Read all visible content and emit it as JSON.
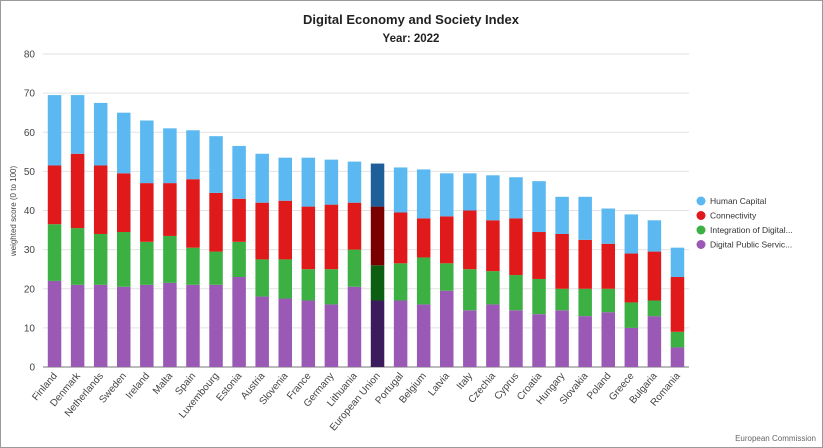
{
  "chart_data": {
    "type": "bar",
    "stacked": true,
    "title": "Digital Economy and Society Index",
    "subtitle": "Year: 2022",
    "xlabel": "",
    "ylabel": "weighted score (0 to 100)",
    "ylim": [
      0,
      80
    ],
    "yticks": [
      0,
      10,
      20,
      30,
      40,
      50,
      60,
      70,
      80
    ],
    "grid": true,
    "legend_position": "right",
    "categories": [
      "Finland",
      "Denmark",
      "Netherlands",
      "Sweden",
      "Ireland",
      "Malta",
      "Spain",
      "Luxembourg",
      "Estonia",
      "Austria",
      "Slovenia",
      "France",
      "Germany",
      "Lithuania",
      "European Union",
      "Portugal",
      "Belgium",
      "Latvia",
      "Italy",
      "Czechia",
      "Cyprus",
      "Croatia",
      "Hungary",
      "Slovakia",
      "Poland",
      "Greece",
      "Bulgaria",
      "Romania"
    ],
    "highlight_category": "European Union",
    "series": [
      {
        "name": "Digital Public Servic...",
        "color": "#9b59b6",
        "highlight_color": "#3b1a5e",
        "values": [
          22,
          21,
          21,
          20.5,
          21,
          21.5,
          21,
          21,
          23,
          18,
          17.5,
          17,
          16,
          20.5,
          17,
          17,
          16,
          19.5,
          14.5,
          16,
          14.5,
          13.5,
          14.5,
          13,
          14,
          10,
          13,
          5
        ]
      },
      {
        "name": "Integration of Digital...",
        "color": "#3cb043",
        "highlight_color": "#0b5e12",
        "values": [
          14.5,
          14.5,
          13,
          14,
          11,
          12,
          9.5,
          8.5,
          9,
          9.5,
          10,
          8,
          9,
          9.5,
          9,
          9.5,
          12,
          7,
          10.5,
          8.5,
          9,
          9,
          5.5,
          7,
          6,
          6.5,
          4,
          4
        ]
      },
      {
        "name": "Connectivity",
        "color": "#e0191b",
        "highlight_color": "#7a0000",
        "values": [
          15,
          19,
          17.5,
          15,
          15,
          13.5,
          17.5,
          15,
          11,
          14.5,
          15,
          16,
          16.5,
          12,
          15,
          13,
          10,
          12,
          15,
          13,
          14.5,
          12,
          14,
          12.5,
          11.5,
          12.5,
          12.5,
          14
        ]
      },
      {
        "name": "Human Capital",
        "color": "#5bb8f0",
        "highlight_color": "#1e5e99",
        "values": [
          18,
          15,
          16,
          15.5,
          16,
          14,
          12.5,
          14.5,
          13.5,
          12.5,
          11,
          12.5,
          11.5,
          10.5,
          11,
          11.5,
          12.5,
          11,
          9.5,
          11.5,
          10.5,
          13,
          9.5,
          11,
          9,
          10,
          8,
          7.5
        ]
      }
    ]
  },
  "legend_order": [
    "Human Capital",
    "Connectivity",
    "Integration of Digital...",
    "Digital Public Servic..."
  ],
  "credit": "European Commission"
}
